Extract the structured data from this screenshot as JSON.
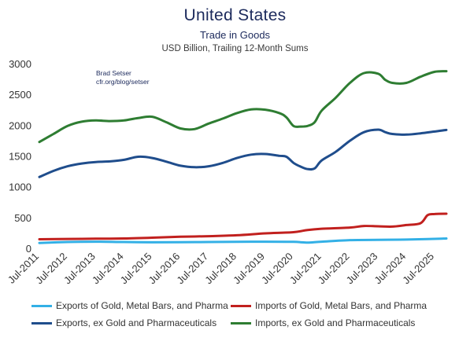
{
  "chart_data": {
    "type": "line",
    "title": "United States",
    "subtitle": "Trade in Goods",
    "subsubtitle": "USD Billion, Trailing 12-Month Sums",
    "annotations": [
      "Brad Setser",
      "cfr.org/blog/setser"
    ],
    "ylim": [
      0,
      3000
    ],
    "yticks": [
      0,
      500,
      1000,
      1500,
      2000,
      2500,
      3000
    ],
    "xlim": [
      "2011-07",
      "2025-12"
    ],
    "xticks": [
      "Jul-2011",
      "Jul-2012",
      "Jul-2013",
      "Jul-2014",
      "Jul-2015",
      "Jul-2016",
      "Jul-2017",
      "Jul-2018",
      "Jul-2019",
      "Jul-2020",
      "Jul-2021",
      "Jul-2022",
      "Jul-2023",
      "Jul-2024",
      "Jul-2025"
    ],
    "grid": false,
    "legend_position": "bottom",
    "series": [
      {
        "name": "Exports of Gold, Metal Bars, and Pharma",
        "color": "#33b0e6",
        "points": [
          [
            "2011-07",
            100
          ],
          [
            "2012-07",
            115
          ],
          [
            "2013-07",
            120
          ],
          [
            "2014-07",
            115
          ],
          [
            "2015-07",
            110
          ],
          [
            "2016-07",
            112
          ],
          [
            "2017-07",
            115
          ],
          [
            "2018-07",
            118
          ],
          [
            "2019-07",
            120
          ],
          [
            "2020-07",
            118
          ],
          [
            "2021-01",
            105
          ],
          [
            "2021-07",
            120
          ],
          [
            "2022-07",
            145
          ],
          [
            "2023-07",
            150
          ],
          [
            "2024-07",
            155
          ],
          [
            "2025-04",
            162
          ],
          [
            "2025-10",
            170
          ],
          [
            "2025-12",
            172
          ]
        ]
      },
      {
        "name": "Imports of Gold, Metal Bars, and Pharma",
        "color": "#c1201e",
        "points": [
          [
            "2011-07",
            160
          ],
          [
            "2012-07",
            165
          ],
          [
            "2013-07",
            168
          ],
          [
            "2014-07",
            172
          ],
          [
            "2015-07",
            185
          ],
          [
            "2016-07",
            200
          ],
          [
            "2017-07",
            210
          ],
          [
            "2018-07",
            225
          ],
          [
            "2019-07",
            255
          ],
          [
            "2020-07",
            275
          ],
          [
            "2021-01",
            310
          ],
          [
            "2021-07",
            330
          ],
          [
            "2022-07",
            350
          ],
          [
            "2023-01",
            375
          ],
          [
            "2023-07",
            370
          ],
          [
            "2024-01",
            365
          ],
          [
            "2024-07",
            390
          ],
          [
            "2025-01",
            420
          ],
          [
            "2025-04",
            550
          ],
          [
            "2025-07",
            570
          ],
          [
            "2025-12",
            575
          ]
        ]
      },
      {
        "name": "Exports, ex Gold and Pharmaceuticals",
        "color": "#1f4d8c",
        "points": [
          [
            "2011-07",
            1170
          ],
          [
            "2012-01",
            1270
          ],
          [
            "2012-07",
            1345
          ],
          [
            "2013-01",
            1390
          ],
          [
            "2013-07",
            1415
          ],
          [
            "2014-01",
            1425
          ],
          [
            "2014-07",
            1450
          ],
          [
            "2015-01",
            1500
          ],
          [
            "2015-07",
            1480
          ],
          [
            "2016-01",
            1420
          ],
          [
            "2016-07",
            1355
          ],
          [
            "2017-01",
            1330
          ],
          [
            "2017-07",
            1345
          ],
          [
            "2018-01",
            1400
          ],
          [
            "2018-07",
            1480
          ],
          [
            "2019-01",
            1535
          ],
          [
            "2019-07",
            1545
          ],
          [
            "2020-01",
            1515
          ],
          [
            "2020-04",
            1500
          ],
          [
            "2020-07",
            1400
          ],
          [
            "2020-10",
            1340
          ],
          [
            "2021-01",
            1300
          ],
          [
            "2021-04",
            1310
          ],
          [
            "2021-07",
            1440
          ],
          [
            "2022-01",
            1580
          ],
          [
            "2022-07",
            1760
          ],
          [
            "2023-01",
            1900
          ],
          [
            "2023-07",
            1940
          ],
          [
            "2023-10",
            1900
          ],
          [
            "2024-01",
            1870
          ],
          [
            "2024-07",
            1860
          ],
          [
            "2025-01",
            1880
          ],
          [
            "2025-07",
            1910
          ],
          [
            "2025-12",
            1935
          ]
        ]
      },
      {
        "name": "Imports, ex Gold and Pharmaceuticals",
        "color": "#2e7d32",
        "points": [
          [
            "2011-07",
            1740
          ],
          [
            "2012-01",
            1870
          ],
          [
            "2012-07",
            2000
          ],
          [
            "2013-01",
            2070
          ],
          [
            "2013-07",
            2090
          ],
          [
            "2014-01",
            2080
          ],
          [
            "2014-07",
            2090
          ],
          [
            "2015-01",
            2130
          ],
          [
            "2015-07",
            2150
          ],
          [
            "2016-01",
            2060
          ],
          [
            "2016-07",
            1960
          ],
          [
            "2017-01",
            1950
          ],
          [
            "2017-07",
            2040
          ],
          [
            "2018-01",
            2120
          ],
          [
            "2018-07",
            2210
          ],
          [
            "2019-01",
            2270
          ],
          [
            "2019-07",
            2265
          ],
          [
            "2020-01",
            2210
          ],
          [
            "2020-04",
            2140
          ],
          [
            "2020-07",
            2000
          ],
          [
            "2020-10",
            1990
          ],
          [
            "2021-01",
            2000
          ],
          [
            "2021-04",
            2060
          ],
          [
            "2021-07",
            2250
          ],
          [
            "2022-01",
            2460
          ],
          [
            "2022-07",
            2700
          ],
          [
            "2023-01",
            2860
          ],
          [
            "2023-07",
            2850
          ],
          [
            "2023-10",
            2750
          ],
          [
            "2024-01",
            2700
          ],
          [
            "2024-07",
            2700
          ],
          [
            "2025-01",
            2800
          ],
          [
            "2025-07",
            2880
          ],
          [
            "2025-12",
            2890
          ]
        ]
      }
    ]
  }
}
